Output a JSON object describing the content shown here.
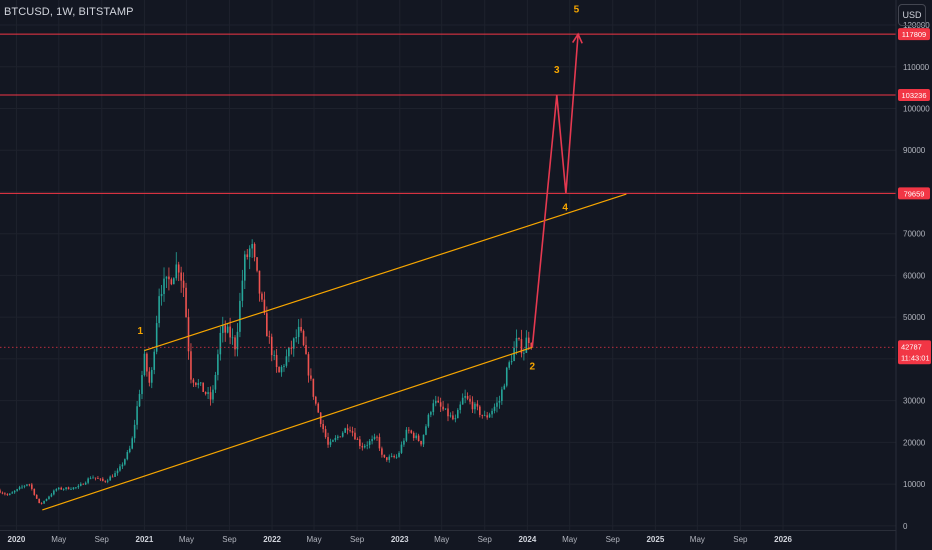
{
  "header": {
    "symbol_title": "BTCUSD, 1W, BITSTAMP",
    "currency_label": "USD"
  },
  "colors": {
    "background": "#131722",
    "grid": "#1e222d",
    "up": "#26a69a",
    "down": "#ef5350",
    "trend": "#f7a600",
    "level": "#f23645",
    "projection": "#e53950",
    "price": "#f23645"
  },
  "chart_data": {
    "type": "candlestick",
    "title": "BTCUSD, 1W, BITSTAMP",
    "ylim": [
      -1000,
      126000
    ],
    "xlim": [
      "2019-11-15",
      "2026-11-20"
    ],
    "grid": true,
    "y_ticks": [
      0,
      10000,
      20000,
      30000,
      40000,
      50000,
      60000,
      70000,
      80000,
      90000,
      100000,
      110000,
      120000
    ],
    "x_ticks": [
      {
        "date": "2020-01-01",
        "label": "2020",
        "year": true
      },
      {
        "date": "2020-05-01",
        "label": "May",
        "year": false
      },
      {
        "date": "2020-09-01",
        "label": "Sep",
        "year": false
      },
      {
        "date": "2021-01-01",
        "label": "2021",
        "year": true
      },
      {
        "date": "2021-05-01",
        "label": "May",
        "year": false
      },
      {
        "date": "2021-09-01",
        "label": "Sep",
        "year": false
      },
      {
        "date": "2022-01-01",
        "label": "2022",
        "year": true
      },
      {
        "date": "2022-05-01",
        "label": "May",
        "year": false
      },
      {
        "date": "2022-09-01",
        "label": "Sep",
        "year": false
      },
      {
        "date": "2023-01-01",
        "label": "2023",
        "year": true
      },
      {
        "date": "2023-05-01",
        "label": "May",
        "year": false
      },
      {
        "date": "2023-09-01",
        "label": "Sep",
        "year": false
      },
      {
        "date": "2024-01-01",
        "label": "2024",
        "year": true
      },
      {
        "date": "2024-05-01",
        "label": "May",
        "year": false
      },
      {
        "date": "2024-09-01",
        "label": "Sep",
        "year": false
      },
      {
        "date": "2025-01-01",
        "label": "2025",
        "year": true
      },
      {
        "date": "2025-05-01",
        "label": "May",
        "year": false
      },
      {
        "date": "2025-09-01",
        "label": "Sep",
        "year": false
      },
      {
        "date": "2026-01-01",
        "label": "2026",
        "year": true
      }
    ],
    "price_path": [
      [
        "2019-11-15",
        8500
      ],
      [
        "2019-12-15",
        7300
      ],
      [
        "2020-02-12",
        10300
      ],
      [
        "2020-03-15",
        5000
      ],
      [
        "2020-05-01",
        8800
      ],
      [
        "2020-07-01",
        9200
      ],
      [
        "2020-08-10",
        11800
      ],
      [
        "2020-09-15",
        10600
      ],
      [
        "2020-10-25",
        13000
      ],
      [
        "2020-12-01",
        19000
      ],
      [
        "2021-01-08",
        40000
      ],
      [
        "2021-01-25",
        33000
      ],
      [
        "2021-02-20",
        57000
      ],
      [
        "2021-03-15",
        58000
      ],
      [
        "2021-04-14",
        63000
      ],
      [
        "2021-05-01",
        57000
      ],
      [
        "2021-05-20",
        36000
      ],
      [
        "2021-06-20",
        33000
      ],
      [
        "2021-07-20",
        30000
      ],
      [
        "2021-08-15",
        47000
      ],
      [
        "2021-09-08",
        46000
      ],
      [
        "2021-09-25",
        43000
      ],
      [
        "2021-10-20",
        63000
      ],
      [
        "2021-11-10",
        67000
      ],
      [
        "2021-12-01",
        57000
      ],
      [
        "2021-12-20",
        48000
      ],
      [
        "2022-01-25",
        36000
      ],
      [
        "2022-03-28",
        47000
      ],
      [
        "2022-05-10",
        30000
      ],
      [
        "2022-06-18",
        19000
      ],
      [
        "2022-08-15",
        24000
      ],
      [
        "2022-09-20",
        19000
      ],
      [
        "2022-11-05",
        21000
      ],
      [
        "2022-11-20",
        16000
      ],
      [
        "2023-01-01",
        16500
      ],
      [
        "2023-01-30",
        23000
      ],
      [
        "2023-03-10",
        20000
      ],
      [
        "2023-04-14",
        30000
      ],
      [
        "2023-06-15",
        25000
      ],
      [
        "2023-07-10",
        31000
      ],
      [
        "2023-09-10",
        25800
      ],
      [
        "2023-10-20",
        30000
      ],
      [
        "2023-11-10",
        37000
      ],
      [
        "2023-12-08",
        44000
      ],
      [
        "2023-12-30",
        42000
      ],
      [
        "2024-01-10",
        46500
      ],
      [
        "2024-01-15",
        42787
      ]
    ],
    "current_price": 42787,
    "current_price_label": "42787",
    "countdown_label": "11:43:01",
    "levels": [
      {
        "value": 117809,
        "label": "117809"
      },
      {
        "value": 103236,
        "label": "103236"
      },
      {
        "value": 79659,
        "label": "79659"
      }
    ],
    "trendlines": [
      {
        "points": [
          [
            "2021-01-01",
            42000
          ],
          [
            "2024-10-10",
            79500
          ]
        ]
      },
      {
        "points": [
          [
            "2020-03-15",
            3800
          ],
          [
            "2024-01-15",
            42787
          ]
        ]
      }
    ],
    "projection": {
      "points": [
        [
          "2024-01-15",
          42787
        ],
        [
          "2024-03-25",
          103236
        ],
        [
          "2024-04-20",
          79659
        ],
        [
          "2024-05-25",
          117809
        ]
      ]
    },
    "wave_labels": [
      {
        "label": "1",
        "date": "2020-12-20",
        "value": 46000
      },
      {
        "label": "2",
        "date": "2024-01-15",
        "value": 37500
      },
      {
        "label": "3",
        "date": "2024-03-25",
        "value": 108500
      },
      {
        "label": "4",
        "date": "2024-04-18",
        "value": 75500
      },
      {
        "label": "5",
        "date": "2024-05-20",
        "value": 123000
      }
    ]
  }
}
